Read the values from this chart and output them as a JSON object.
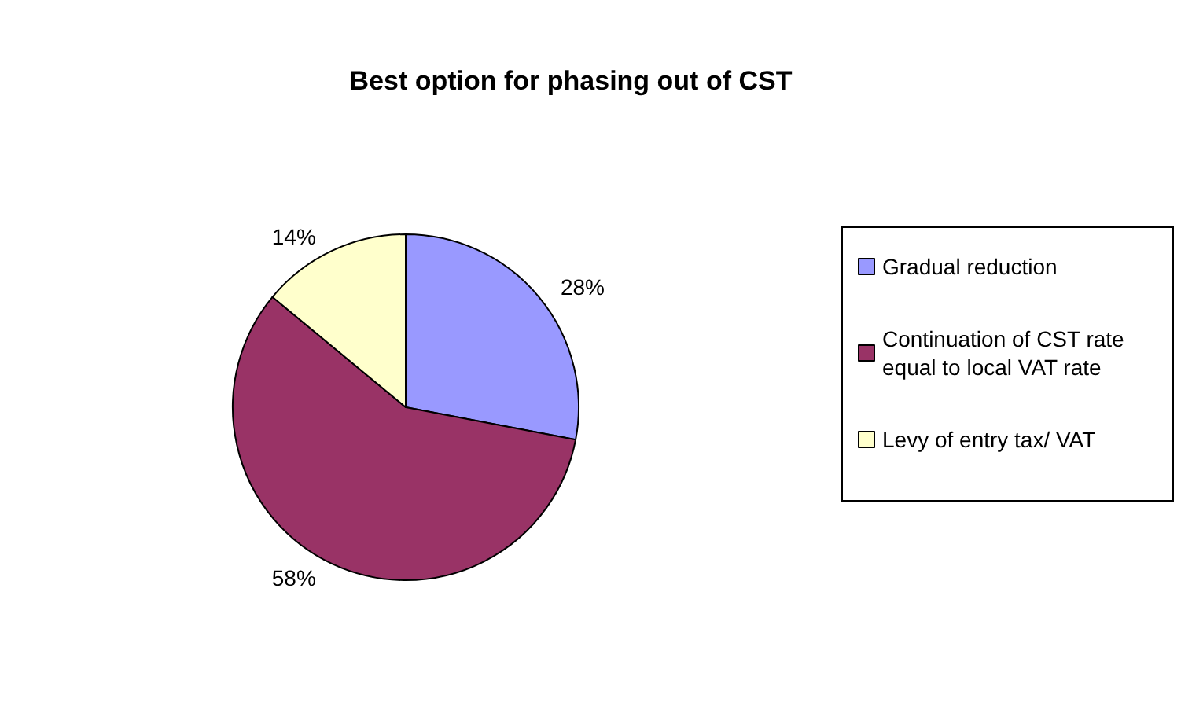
{
  "chart_data": {
    "type": "pie",
    "title": "Best option for phasing out of CST",
    "categories": [
      "Gradual reduction",
      "Continuation of CST rate equal to local VAT rate",
      "Levy of entry tax/ VAT"
    ],
    "values": [
      28,
      58,
      14
    ],
    "colors": [
      "#9999ff",
      "#993366",
      "#ffffcc"
    ],
    "value_labels": [
      "28%",
      "58%",
      "14%"
    ],
    "legend": "right"
  }
}
